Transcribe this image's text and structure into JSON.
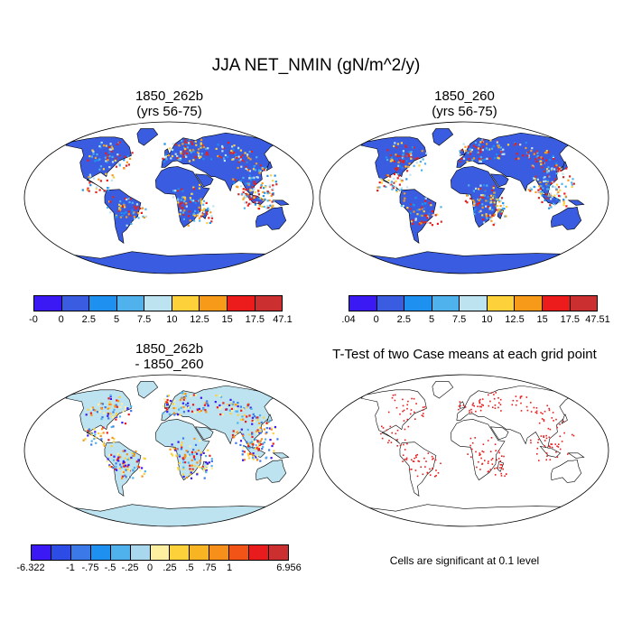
{
  "title": "JJA NET_NMIN (gN/m^2/y)",
  "panels": [
    {
      "title": "1850_262b",
      "subtitle": "(yrs 56-75)",
      "kind": "field"
    },
    {
      "title": "1850_260",
      "subtitle": "(yrs 56-75)",
      "kind": "field"
    },
    {
      "title": "1850_262b",
      "subtitle": "- 1850_260",
      "kind": "diff"
    },
    {
      "title": "T-Test of two Case means at each grid point",
      "subtitle": "",
      "kind": "ttest"
    }
  ],
  "colorbars": [
    {
      "colors": [
        "#3a19f4",
        "#3a5ce0",
        "#1e90f0",
        "#4fb2ec",
        "#bde3f0",
        "#fcd13a",
        "#f79a1a",
        "#ec1c1c",
        "#cc2f2f"
      ],
      "labels": [
        "-0",
        "0",
        "2.5",
        "5",
        "7.5",
        "10",
        "12.5",
        "15",
        "17.5",
        "47.1"
      ]
    },
    {
      "colors": [
        "#3a19f4",
        "#3a5ce0",
        "#1e90f0",
        "#4fb2ec",
        "#bde3f0",
        "#fcd13a",
        "#f79a1a",
        "#ec1c1c",
        "#cc2f2f"
      ],
      "labels": [
        ".04",
        "0",
        "2.5",
        "5",
        "7.5",
        "10",
        "12.5",
        "15",
        "17.5",
        "47.51"
      ]
    },
    {
      "colors": [
        "#3a19f4",
        "#2d4ce6",
        "#3b78e8",
        "#1e90f0",
        "#4fb2ec",
        "#a9d8ee",
        "#fdf0a0",
        "#fcd13a",
        "#f7b423",
        "#f7901a",
        "#f25418",
        "#e81c1c",
        "#cc2f2f"
      ],
      "labels": [
        "-6.322",
        "",
        "-1",
        "-.75",
        "-.5",
        "-.25",
        "0",
        ".25",
        ".5",
        ".75",
        "1",
        "",
        "",
        "6.956"
      ]
    }
  ],
  "note": "Cells are significant at 0.1 level"
}
